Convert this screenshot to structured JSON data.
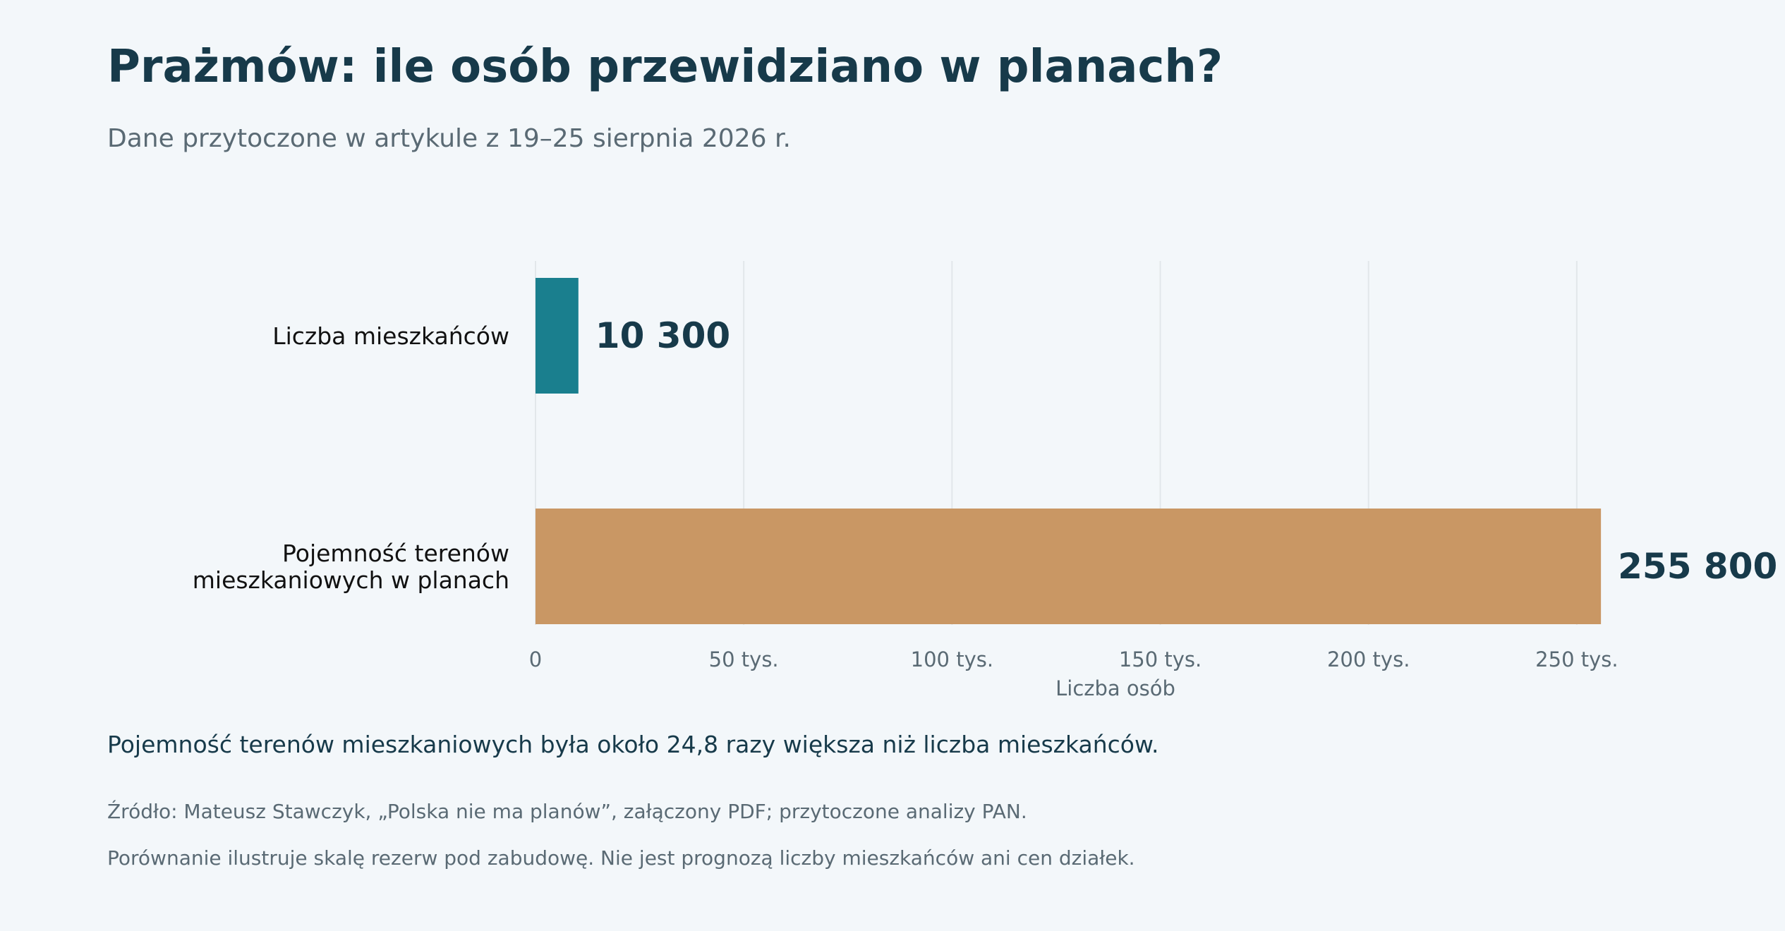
{
  "header": {
    "title": "Prażmów: ile osób przewidziano w planach?",
    "subtitle": "Dane przytoczone w artykule z 19–25 sierpnia 2026 r."
  },
  "chart_data": {
    "type": "bar",
    "orientation": "horizontal",
    "categories": [
      "Liczba mieszkańców",
      "Pojemność terenów mieszkaniowych w planach"
    ],
    "category_lines": [
      [
        "Liczba mieszkańców"
      ],
      [
        "Pojemność terenów",
        "mieszkaniowych w planach"
      ]
    ],
    "values": [
      10300,
      255800
    ],
    "value_labels": [
      "10 300",
      "255 800"
    ],
    "colors": [
      "#1a7f8e",
      "#c99764"
    ],
    "xlabel": "Liczba osób",
    "xlim": [
      0,
      280000
    ],
    "ticks": [
      0,
      50000,
      100000,
      150000,
      200000,
      250000
    ],
    "tick_labels": [
      "0",
      "50 tys.",
      "100 tys.",
      "150 tys.",
      "200 tys.",
      "250 tys."
    ],
    "grid": "vertical",
    "grid_color": "#e2e7ea",
    "legend": "none"
  },
  "footer": {
    "takeaway": "Pojemność terenów mieszkaniowych była około 24,8 razy większa niż liczba mieszkańców.",
    "source": "Źródło: Mateusz Stawczyk, „Polska nie ma planów”, załączony PDF; przytoczone analizy PAN.",
    "note": "Porównanie ilustruje skalę rezerw pod zabudowę. Nie jest prognozą liczby mieszkańców ani cen działek."
  }
}
